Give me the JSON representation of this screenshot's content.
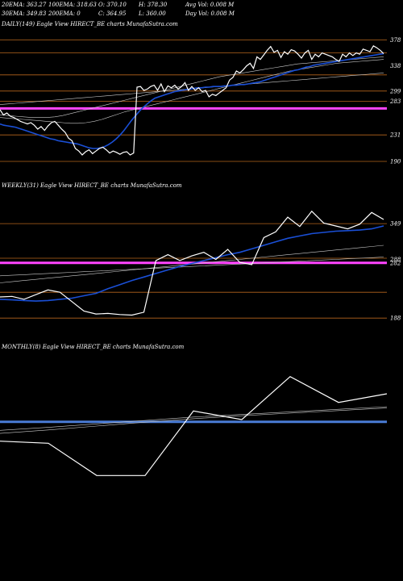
{
  "header": {
    "row1": [
      {
        "label": "20EMA:",
        "value": "363.27"
      },
      {
        "label": "100EMA:",
        "value": "318.63"
      },
      {
        "label": "O:",
        "value": "370.10"
      },
      {
        "label": "H:",
        "value": "378.30"
      },
      {
        "label": "Avg Vol:",
        "value": "0.008 M"
      }
    ],
    "row2": [
      {
        "label": "30EMA:",
        "value": "349.83"
      },
      {
        "label": "200EMA:",
        "value": "0"
      },
      {
        "label": "C:",
        "value": "364.95"
      },
      {
        "label": "L:",
        "value": "360.00"
      },
      {
        "label": "Day Vol:",
        "value": "0.008 M"
      }
    ]
  },
  "chart_data": [
    {
      "type": "line",
      "title": "DAILY(149) Eagle  View  HIRECT_BE charts MunafaSutra.com",
      "colors": {
        "price": "#ffffff",
        "ema": "#1a4fd6",
        "level": "#b5651d",
        "support": "#ff44ff",
        "ma": "#cccccc"
      },
      "ylim": [
        190,
        390
      ],
      "ticks": [
        "378",
        "338",
        "299",
        "283",
        "231",
        "190"
      ],
      "levels": [
        378,
        358,
        324,
        299,
        283,
        231,
        190
      ],
      "support": 272,
      "price": [
        270,
        262,
        265,
        260,
        258,
        255,
        252,
        250,
        248,
        250,
        246,
        240,
        244,
        238,
        245,
        250,
        252,
        246,
        240,
        235,
        226,
        222,
        210,
        206,
        200,
        205,
        208,
        202,
        206,
        210,
        212,
        208,
        203,
        206,
        204,
        201,
        204,
        205,
        200,
        203,
        305,
        306,
        300,
        302,
        306,
        308,
        300,
        310,
        298,
        307,
        304,
        308,
        302,
        306,
        312,
        300,
        306,
        300,
        304,
        298,
        300,
        290,
        294,
        292,
        296,
        300,
        304,
        316,
        320,
        330,
        327,
        332,
        338,
        342,
        334,
        352,
        348,
        355,
        362,
        368,
        359,
        362,
        351,
        360,
        356,
        363,
        361,
        356,
        350,
        358,
        362,
        348,
        356,
        352,
        358,
        356,
        354,
        352,
        348,
        345,
        356,
        352,
        358,
        354,
        358,
        356,
        364,
        362,
        360,
        369,
        366,
        362,
        357
      ],
      "ema": [
        248,
        246,
        245,
        244,
        243,
        241,
        239,
        237,
        235,
        233,
        231,
        229,
        227,
        225,
        224,
        222,
        221,
        220,
        219,
        218,
        217,
        215,
        213,
        211,
        210,
        210,
        211,
        213,
        216,
        220,
        225,
        231,
        238,
        246,
        254,
        261,
        268,
        274,
        279,
        284,
        288,
        290,
        292,
        294,
        296,
        298,
        299,
        300,
        301,
        302,
        303,
        304,
        304,
        305,
        305,
        306,
        306,
        306,
        307,
        307,
        308,
        308,
        309,
        309,
        310,
        311,
        312,
        313,
        315,
        317,
        319,
        321,
        323,
        325,
        327,
        329,
        331,
        332,
        334,
        336,
        337,
        339,
        340,
        341,
        342,
        343,
        344,
        345,
        346,
        347,
        348,
        349,
        350,
        351,
        352,
        353,
        354,
        355,
        356,
        357
      ],
      "ma": [
        [
          258,
          257,
          256,
          255,
          254,
          253,
          252,
          251,
          250,
          249,
          249,
          250,
          252,
          255,
          259,
          263,
          267,
          270,
          273,
          276,
          279,
          282,
          285,
          288,
          291,
          294,
          297,
          300,
          303,
          306,
          309,
          312,
          315,
          318,
          321,
          324,
          327,
          330,
          332,
          334,
          336,
          338,
          340,
          342,
          343,
          344,
          345,
          346,
          347,
          348
        ],
        [
          262,
          261,
          260,
          259,
          258,
          258,
          258,
          259,
          261,
          264,
          267,
          270,
          273,
          276,
          279,
          282,
          285,
          288,
          291,
          294,
          297,
          300,
          303,
          306,
          309,
          312,
          315,
          318,
          321,
          323,
          325,
          327,
          329,
          331,
          333,
          335,
          337,
          339,
          341,
          342,
          343,
          344,
          345,
          346,
          347,
          348,
          349,
          350,
          351,
          352
        ],
        [
          278,
          279,
          280,
          281,
          282,
          283,
          284,
          285,
          286,
          287,
          288,
          289,
          290,
          291,
          292,
          293,
          294,
          295,
          296,
          297,
          298,
          299,
          300,
          301,
          302,
          303,
          304,
          305,
          306,
          307,
          308,
          309,
          310,
          311,
          312,
          313,
          314,
          315,
          316,
          317,
          318,
          319,
          320,
          321,
          322,
          323,
          324,
          325,
          326,
          327
        ]
      ]
    },
    {
      "type": "line",
      "title": "WEEKLY(31) Eagle  View  HIRECT_BE charts MunafaSutra.com",
      "colors": {
        "price": "#ffffff",
        "ema": "#1a4fd6",
        "level": "#b5651d",
        "support": "#ff44ff",
        "ma": "#cccccc"
      },
      "ylim": [
        180,
        400
      ],
      "ticks": [
        "349",
        "288",
        "282",
        "188"
      ],
      "levels": [
        349,
        290,
        232,
        188
      ],
      "support": 282,
      "price": [
        224,
        225,
        220,
        228,
        236,
        232,
        216,
        200,
        195,
        196,
        194,
        193,
        198,
        286,
        296,
        286,
        294,
        300,
        288,
        305,
        283,
        279,
        325,
        335,
        360,
        344,
        370,
        350,
        345,
        340,
        348,
        368,
        356
      ],
      "ema": [
        220,
        219,
        218,
        217,
        218,
        220,
        222,
        226,
        230,
        238,
        245,
        252,
        258,
        264,
        270,
        276,
        281,
        286,
        291,
        296,
        300,
        306,
        312,
        318,
        324,
        328,
        332,
        334,
        336,
        337,
        338,
        340,
        345
      ],
      "ma": [
        [
          248,
          250,
          252,
          254,
          256,
          258,
          260,
          262,
          264,
          266,
          268,
          270,
          272,
          274,
          276,
          278,
          280,
          282,
          284,
          286,
          288,
          290,
          292,
          294,
          296,
          298,
          300,
          302,
          304,
          306,
          308,
          310,
          312
        ],
        [
          260,
          261,
          262,
          263,
          264,
          265,
          266,
          267,
          268,
          269,
          270,
          271,
          272,
          273,
          274,
          275,
          276,
          277,
          278,
          279,
          280,
          281,
          282,
          283,
          284,
          285,
          286,
          287,
          288,
          289,
          290,
          291,
          292
        ]
      ]
    },
    {
      "type": "line",
      "title": "MONTHLY(8) Eagle  View  HIRECT_BE charts MunafaSutra.com",
      "colors": {
        "price": "#ffffff",
        "ema": "#4a7cd6",
        "ma": "#cccccc"
      },
      "ylim": [
        150,
        450
      ],
      "price": [
        250,
        245,
        170,
        170,
        320,
        300,
        400,
        340,
        360
      ],
      "ema": [
        295,
        295,
        295,
        295,
        295,
        295,
        295,
        295,
        295
      ],
      "ma": [
        [
          275,
          282,
          290,
          298,
          306,
          312,
          318,
          324,
          330
        ],
        [
          268,
          276,
          285,
          294,
          302,
          309,
          315,
          321,
          327
        ]
      ]
    }
  ]
}
